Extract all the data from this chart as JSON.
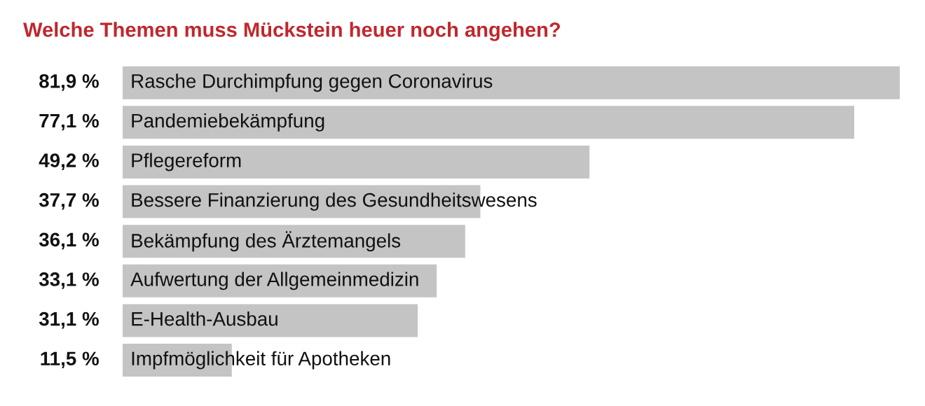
{
  "chart_data": {
    "type": "bar",
    "orientation": "horizontal",
    "title": "Welche Themen muss Mückstein heuer noch angehen?",
    "categories": [
      "Rasche Durchimpfung gegen Coronavirus",
      "Pandemiebekämpfung",
      "Pflegereform",
      "Bessere Finanzierung des Gesundheitswesens",
      "Bekämpfung des Ärztemangels",
      "Aufwertung der Allgemeinmedizin",
      "E-Health-Ausbau",
      "Impfmöglichkeit für Apotheken"
    ],
    "values": [
      81.9,
      77.1,
      49.2,
      37.7,
      36.1,
      33.1,
      31.1,
      11.5
    ],
    "value_labels": [
      "81,9 %",
      "77,1 %",
      "49,2 %",
      "37,7 %",
      "36,1 %",
      "33,1 %",
      "31,1 %",
      "11,5 %"
    ],
    "color": "#c4c4c4",
    "tick_labels": false
  }
}
